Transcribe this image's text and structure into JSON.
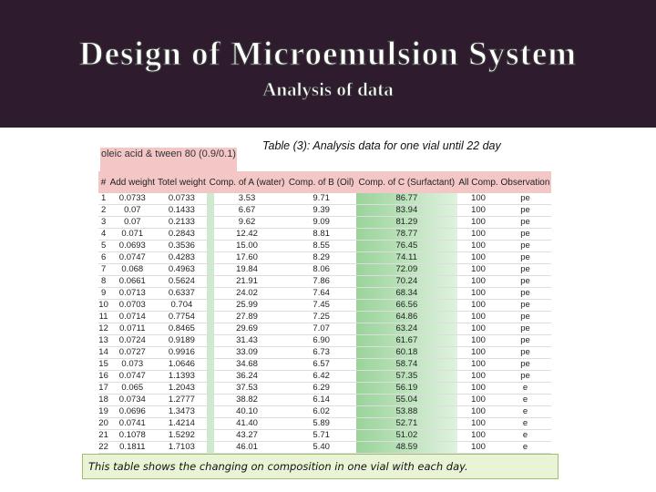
{
  "header": {
    "title": "Design of Microemulsion System",
    "subtitle": "Analysis of data"
  },
  "caption": "Table (3): Analysis data for one vial until 22 day",
  "table": {
    "group_header": "oleic acid & tween 80 (0.9/0.1)",
    "columns": [
      "#",
      "Add weight",
      "Totel weight",
      "Comp. of A (water)",
      "Comp. of B (Oil)",
      "Comp. of C (Surfactant)",
      "All Comp.",
      "Observation"
    ],
    "rows": [
      [
        "1",
        "0.0733",
        "0.0733",
        "3.53",
        "9.71",
        "86.77",
        "100",
        "pe"
      ],
      [
        "2",
        "0.07",
        "0.1433",
        "6.67",
        "9.39",
        "83.94",
        "100",
        "pe"
      ],
      [
        "3",
        "0.07",
        "0.2133",
        "9.62",
        "9.09",
        "81.29",
        "100",
        "pe"
      ],
      [
        "4",
        "0.071",
        "0.2843",
        "12.42",
        "8.81",
        "78.77",
        "100",
        "pe"
      ],
      [
        "5",
        "0.0693",
        "0.3536",
        "15.00",
        "8.55",
        "76.45",
        "100",
        "pe"
      ],
      [
        "6",
        "0.0747",
        "0.4283",
        "17.60",
        "8.29",
        "74.11",
        "100",
        "pe"
      ],
      [
        "7",
        "0.068",
        "0.4963",
        "19.84",
        "8.06",
        "72.09",
        "100",
        "pe"
      ],
      [
        "8",
        "0.0661",
        "0.5624",
        "21.91",
        "7.86",
        "70.24",
        "100",
        "pe"
      ],
      [
        "9",
        "0.0713",
        "0.6337",
        "24.02",
        "7.64",
        "68.34",
        "100",
        "pe"
      ],
      [
        "10",
        "0.0703",
        "0.704",
        "25.99",
        "7.45",
        "66.56",
        "100",
        "pe"
      ],
      [
        "11",
        "0.0714",
        "0.7754",
        "27.89",
        "7.25",
        "64.86",
        "100",
        "pe"
      ],
      [
        "12",
        "0.0711",
        "0.8465",
        "29.69",
        "7.07",
        "63.24",
        "100",
        "pe"
      ],
      [
        "13",
        "0.0724",
        "0.9189",
        "31.43",
        "6.90",
        "61.67",
        "100",
        "pe"
      ],
      [
        "14",
        "0.0727",
        "0.9916",
        "33.09",
        "6.73",
        "60.18",
        "100",
        "pe"
      ],
      [
        "15",
        "0.073",
        "1.0646",
        "34.68",
        "6.57",
        "58.74",
        "100",
        "pe"
      ],
      [
        "16",
        "0.0747",
        "1.1393",
        "36.24",
        "6.42",
        "57.35",
        "100",
        "pe"
      ],
      [
        "17",
        "0.065",
        "1.2043",
        "37.53",
        "6.29",
        "56.19",
        "100",
        "e"
      ],
      [
        "18",
        "0.0734",
        "1.2777",
        "38.82",
        "6.14",
        "55.04",
        "100",
        "e"
      ],
      [
        "19",
        "0.0696",
        "1.3473",
        "40.10",
        "6.02",
        "53.88",
        "100",
        "e"
      ],
      [
        "20",
        "0.0741",
        "1.4214",
        "41.40",
        "5.89",
        "52.71",
        "100",
        "e"
      ],
      [
        "21",
        "0.1078",
        "1.5292",
        "43.27",
        "5.71",
        "51.02",
        "100",
        "e"
      ],
      [
        "22",
        "0.1811",
        "1.7103",
        "46.01",
        "5.40",
        "48.59",
        "100",
        "e"
      ]
    ]
  },
  "note": "This table shows the changing on composition in one vial with each day."
}
